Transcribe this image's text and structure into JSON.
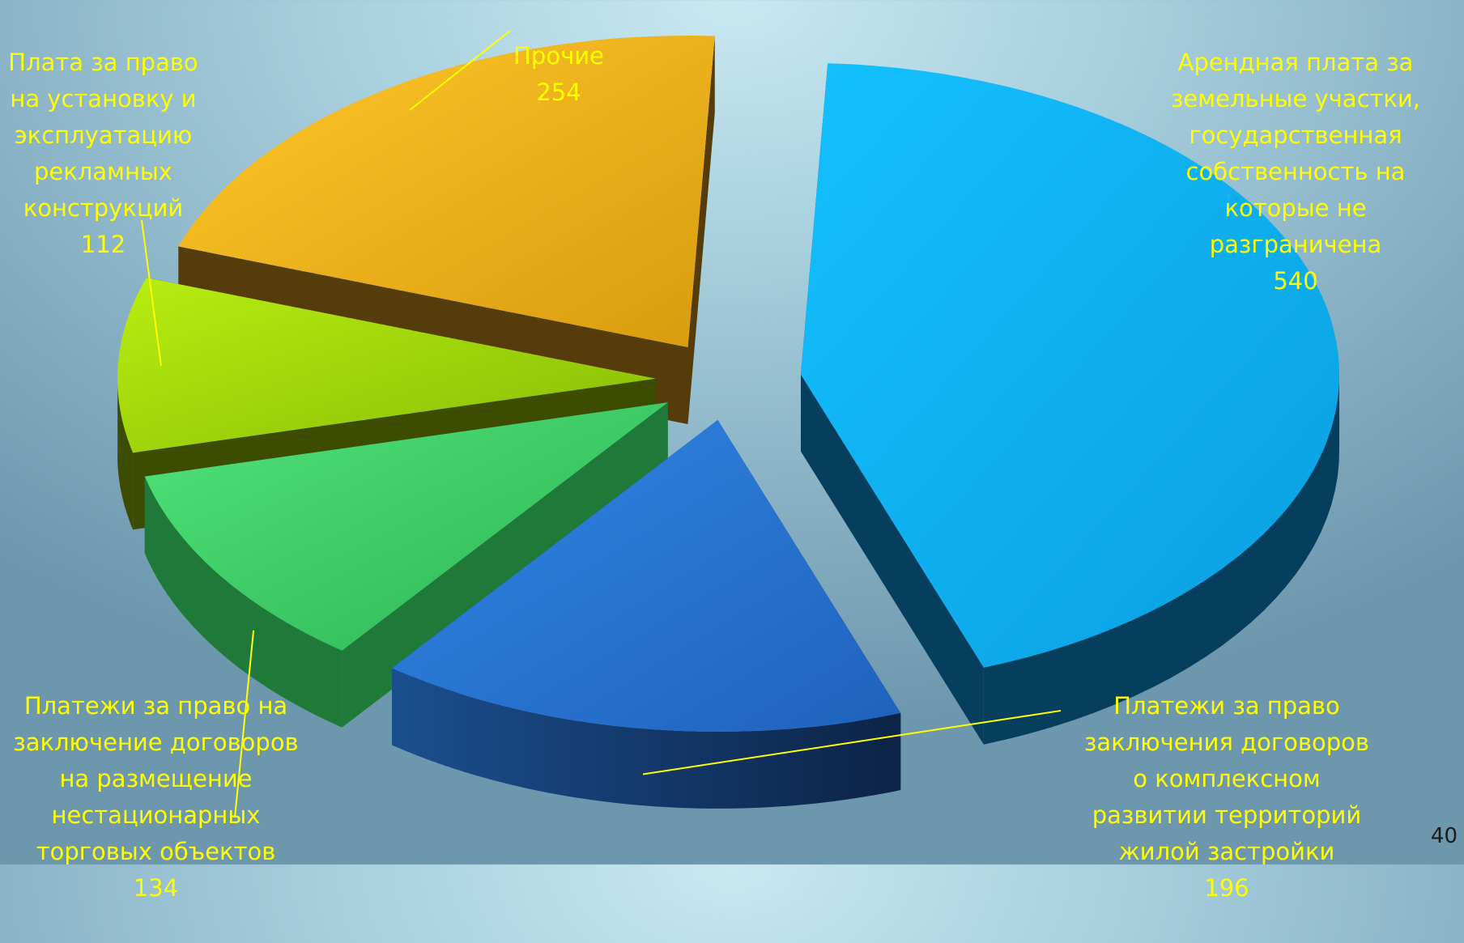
{
  "chart_data": {
    "type": "pie",
    "style": "3d-exploded",
    "title": "",
    "legend": "none",
    "slices": [
      {
        "label": "Арендная плата за\nземельные участки,\nгосударственная\nсобственность на\nкоторые не\nразграничена",
        "value": 540,
        "color": "#12b8f2"
      },
      {
        "label": "Платежи за право\nзаключения договоров\nо комплексном\nразвитии территорий\nжилой застройки",
        "value": 196,
        "color": "#2a78d6"
      },
      {
        "label": "Платежи за право на\nзаключение договоров\nна размещение\nнестационарных\nторговых объектов",
        "value": 134,
        "color": "#3fd16a"
      },
      {
        "label": "Плата за право\nна установку и\nэксплуатацию\nрекламных\nконструкций",
        "value": 112,
        "color": "#a2dc08"
      },
      {
        "label": "Прочие",
        "value": 254,
        "color": "#f2b61a"
      }
    ]
  },
  "page_number": "40"
}
